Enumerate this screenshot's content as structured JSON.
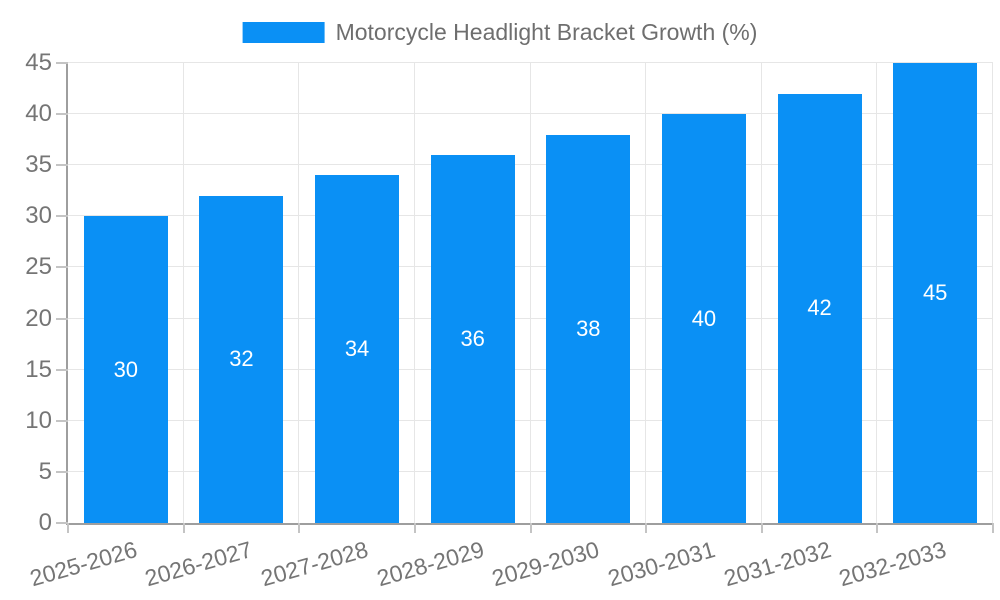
{
  "chart_data": {
    "type": "bar",
    "title": "Motorcycle Headlight Bracket Growth (%)",
    "categories": [
      "2025-2026",
      "2026-2027",
      "2027-2028",
      "2028-2029",
      "2029-2030",
      "2030-2031",
      "2031-2032",
      "2032-2033"
    ],
    "values": [
      30,
      32,
      34,
      36,
      38,
      40,
      42,
      45
    ],
    "bar_value_labels": [
      "30",
      "32",
      "34",
      "36",
      "38",
      "40",
      "42",
      "45"
    ],
    "y_tick_labels": [
      "0",
      "5",
      "10",
      "15",
      "20",
      "25",
      "30",
      "35",
      "40",
      "45"
    ],
    "xlabel": "",
    "ylabel": "",
    "ylim": [
      0,
      45
    ],
    "ytick_step": 5,
    "grid": "horizontal and vertical gridlines on",
    "legend_position": "top-center",
    "value_label_position": "center of bar"
  },
  "colors": {
    "bar": "#0a90f5",
    "bar_label_text": "#ffffff",
    "grid": "#e6e6e6",
    "tick": "#c4c4c4",
    "axis": "#9e9e9e",
    "tick_label_text": "#757575",
    "legend_text": "#6e6e6e",
    "background": "#ffffff"
  }
}
